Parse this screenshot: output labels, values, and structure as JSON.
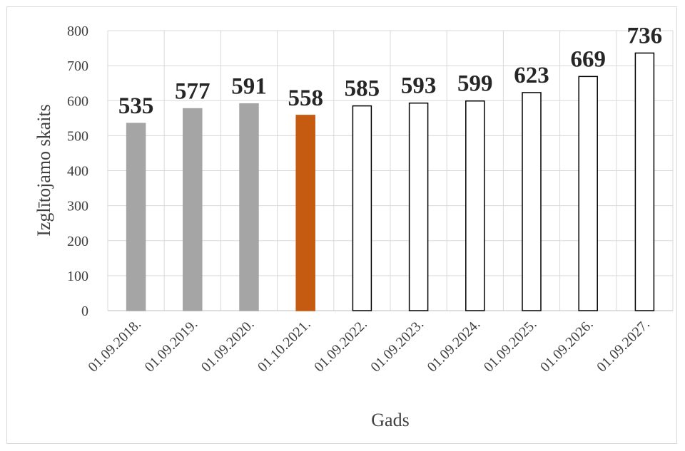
{
  "chart_data": {
    "type": "bar",
    "title": "",
    "xlabel": "Gads",
    "ylabel": "Izglītojamo skaits",
    "categories": [
      "01.09.2018.",
      "01.09.2019.",
      "01.09.2020.",
      "01.10.2021.",
      "01.09.2022.",
      "01.09.2023.",
      "01.09.2024.",
      "01.09.2025.",
      "01.09.2026.",
      "01.09.2027."
    ],
    "values": [
      535,
      577,
      591,
      558,
      585,
      593,
      599,
      623,
      669,
      736
    ],
    "data_labels": [
      "535",
      "577",
      "591",
      "558",
      "585",
      "593",
      "599",
      "623",
      "669",
      "736"
    ],
    "bar_fills": [
      "#a5a5a5",
      "#a5a5a5",
      "#a5a5a5",
      "#c55a11",
      "#ffffff",
      "#ffffff",
      "#ffffff",
      "#ffffff",
      "#ffffff",
      "#ffffff"
    ],
    "bar_strokes": [
      "#a5a5a5",
      "#a5a5a5",
      "#a5a5a5",
      "#c55a11",
      "#000000",
      "#000000",
      "#000000",
      "#000000",
      "#000000",
      "#000000"
    ],
    "ylim": [
      0,
      800
    ],
    "yticks": [
      0,
      100,
      200,
      300,
      400,
      500,
      600,
      700,
      800
    ],
    "ytick_labels": [
      "0",
      "100",
      "200",
      "300",
      "400",
      "500",
      "600",
      "700",
      "800"
    ],
    "grid": true,
    "legend": "none"
  }
}
